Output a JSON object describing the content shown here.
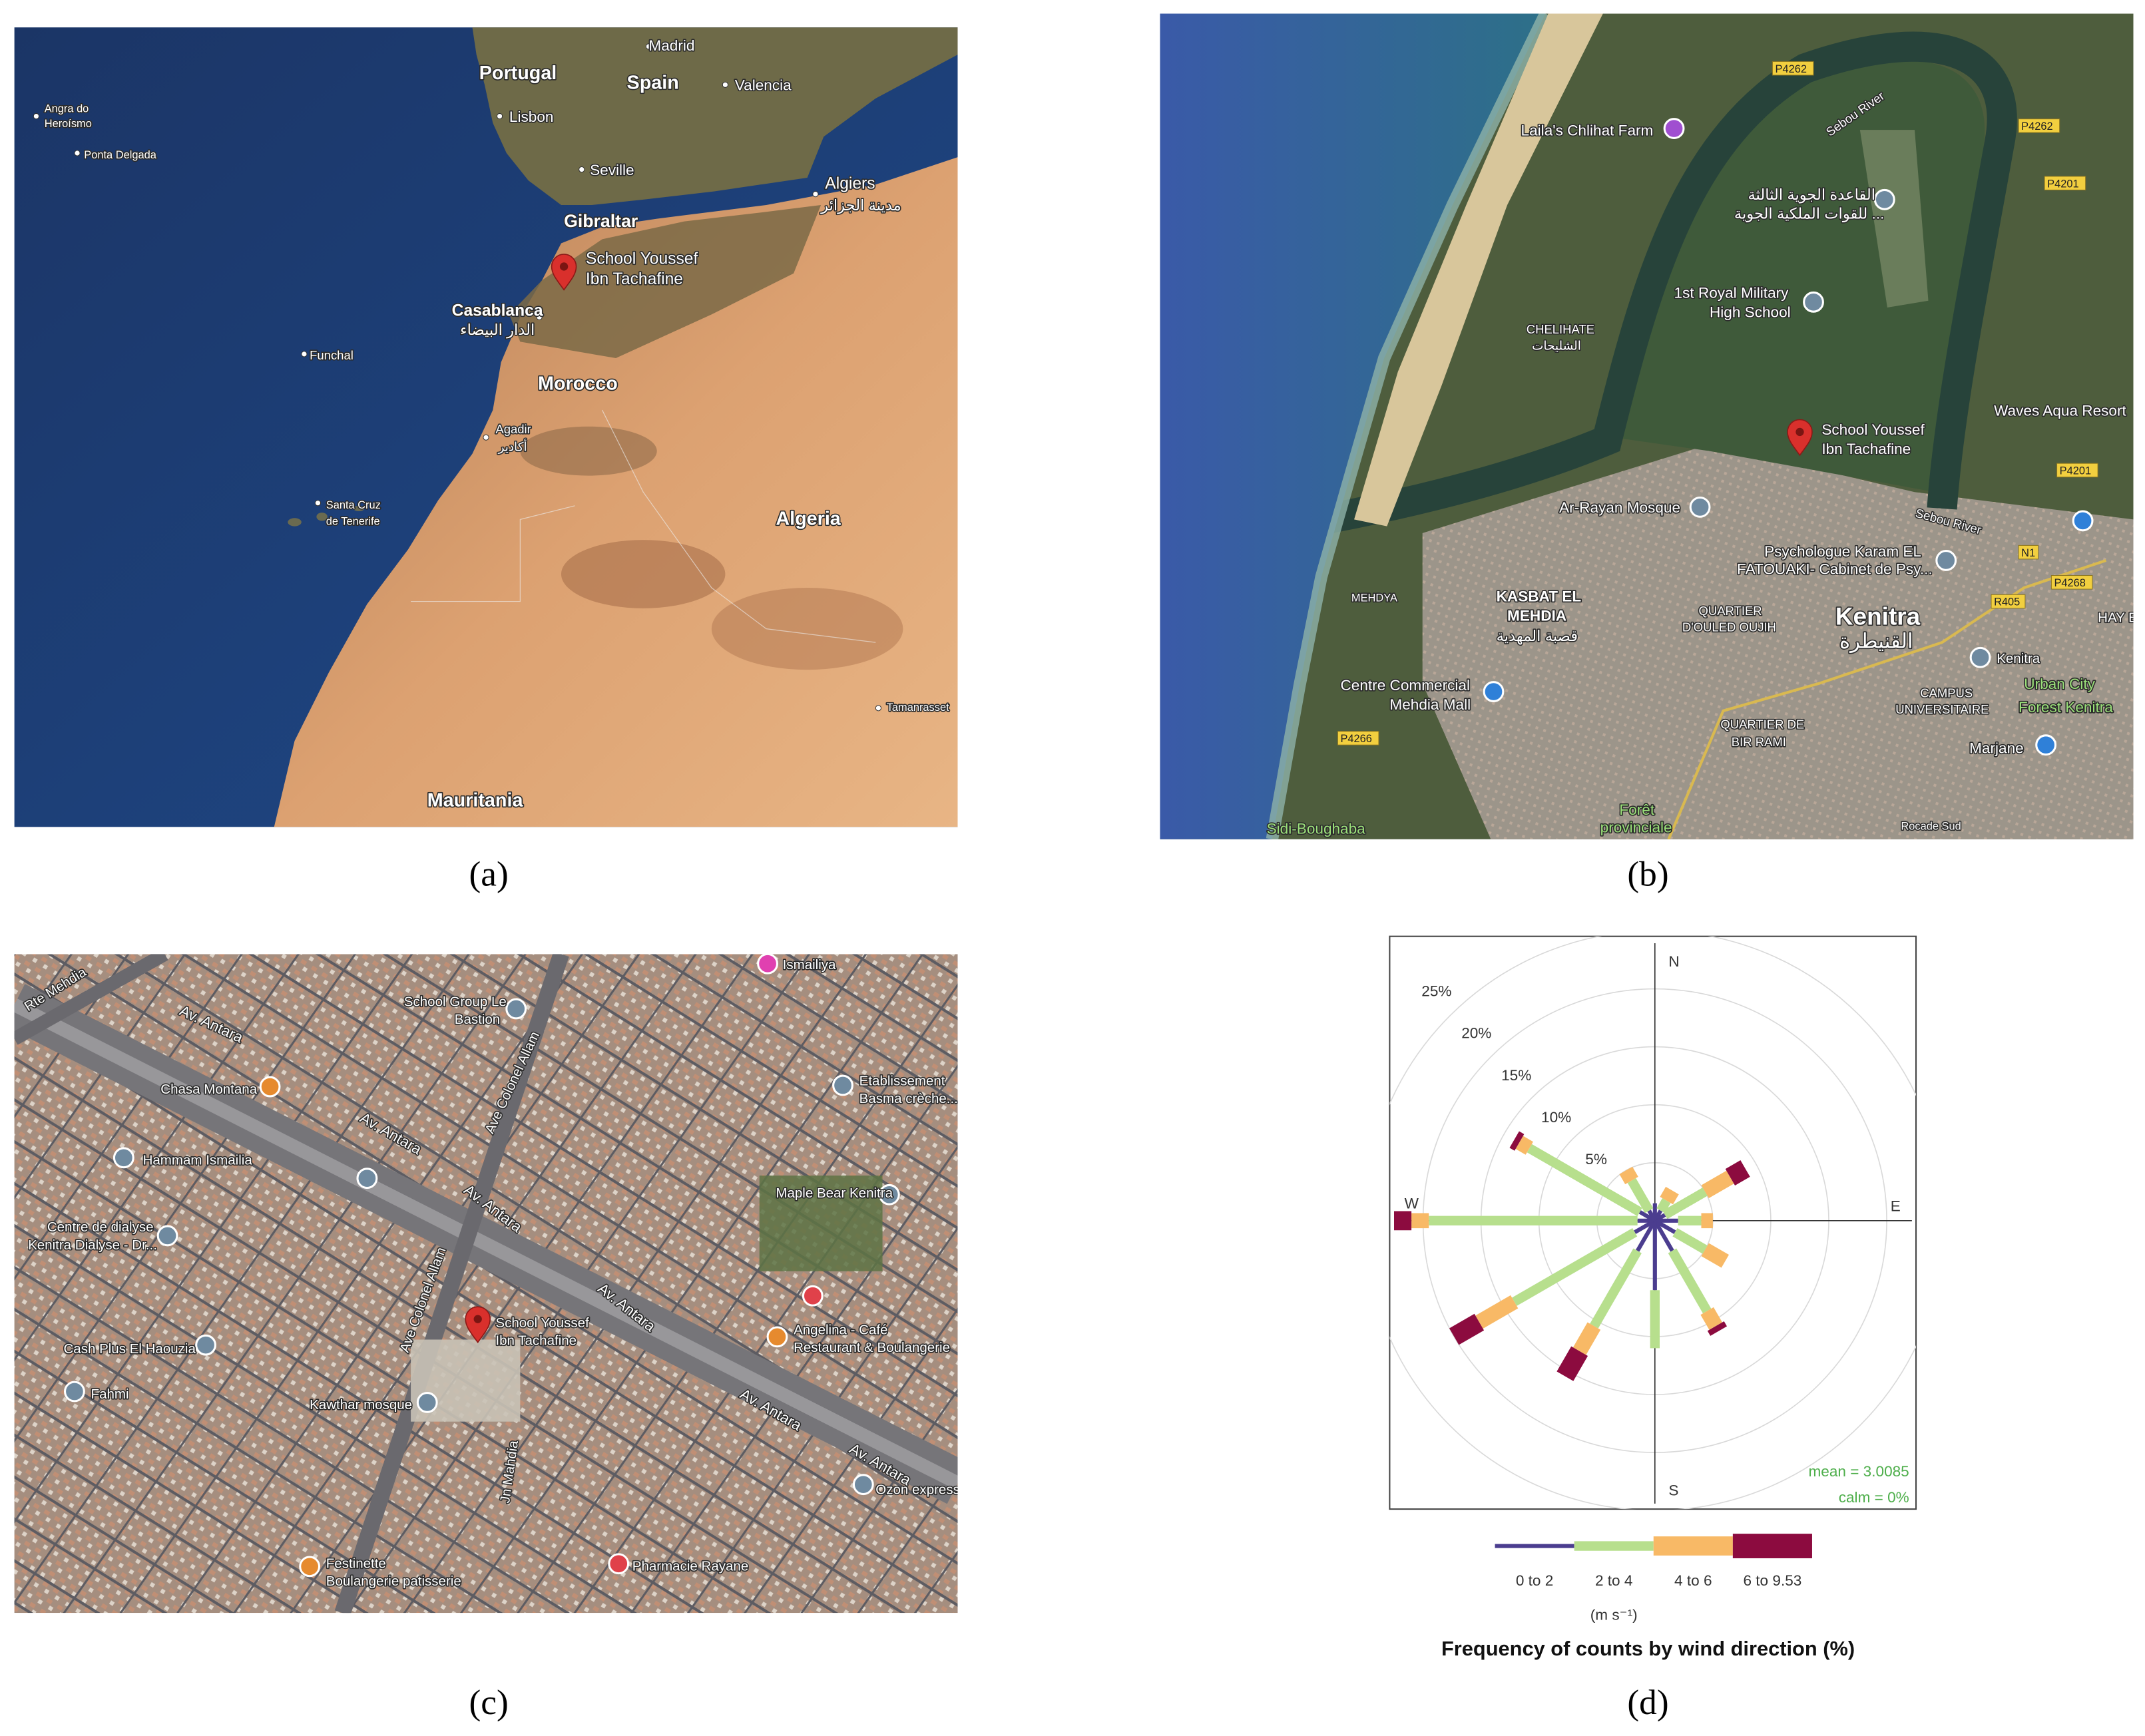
{
  "panels": [
    {
      "label": "(a)",
      "map_labels": [
        "Madrid",
        "Portugal",
        "Spain",
        "Valencia",
        "Lisbon",
        "Angra do",
        "Heroísmo",
        "Ponta Delgada",
        "Seville",
        "Algiers",
        "مدينة الجزائر",
        "Gibraltar",
        "School Youssef",
        "Ibn Tachafine",
        "Casablanca",
        "الدار البيضاء",
        "Funchal",
        "Morocco",
        "Agadir",
        "أكادير",
        "Santa Cruz",
        "de Tenerife",
        "Algeria",
        "Tamanrasset",
        "Mauritania"
      ]
    },
    {
      "label": "(b)",
      "map_labels": [
        "P4262",
        "Laila's Chlihat Farm",
        "القاعدة الجوية الثالثة",
        "للقوات الملكية الجوية ...",
        "1st Royal Military",
        "High School",
        "CHELIHATE",
        "الشليحات",
        "School Youssef",
        "Ibn Tachafine",
        "Waves Aqua Resort",
        "Sebou River",
        "Ar-Rayan Mosque",
        "Psychologue Karam EL",
        "FATOUAKI- Cabinet de Psy...",
        "KASBAT EL",
        "MEHDIA",
        "قصبة المهدية",
        "MEHDYA",
        "QUARTIER",
        "D'OULED OUJIH",
        "Kenitra",
        "القنيطرة",
        "Centre Commercial",
        "Mehdia Mall",
        "Kenitra",
        "CAMPUS",
        "UNIVERSITAIRE",
        "Urban City",
        "Forest Kenitra",
        "QUARTIER DE",
        "BIR RAMI",
        "Marjane",
        "Forêt",
        "provinciale",
        "Sidi-Boughaba",
        "P4266",
        "N1",
        "R405",
        "P4268",
        "P4201",
        "P4262",
        "HAY E",
        "Rocade Sud",
        "Sebou River",
        "P4201"
      ]
    },
    {
      "label": "(c)",
      "map_labels": [
        "Rte Mehdia",
        "Av. Antara",
        "Ismailiya",
        "School Group Le",
        "Bastion",
        "Chasa Montana",
        "Etablissement",
        "Basma crèche...",
        "Hammam Ismailia",
        "Av. Antara",
        "Ave Colonel Allam",
        "Av. Antara",
        "Maple Bear Kenitra",
        "Centre de dialyse",
        "Kenitra Dialyse - Dr...",
        "Ave Colonel Allam",
        "School Youssef",
        "Ibn Tachafine",
        "Av. Antara",
        "Angelina - Café",
        "Restaurant & Boulangerie",
        "Cash Plus El Haouzia",
        "Fahmi",
        "Av. Antara",
        "Kawthar mosque",
        "Jn Mahdia",
        "Av. Antara",
        "Ozon express",
        "Festinette",
        "Boulangerie patisserie",
        "Pharmacie Rayane"
      ]
    },
    {
      "label": "(d)"
    }
  ],
  "chart_data": {
    "type": "windrose",
    "title": "Frequency of counts by wind direction (%)",
    "unit_label": "(m s⁻¹)",
    "compass": [
      "N",
      "E",
      "S",
      "W"
    ],
    "directions": [
      0,
      30,
      60,
      90,
      120,
      150,
      180,
      210,
      240,
      270,
      300,
      330
    ],
    "series": [
      {
        "name": "0 to 2",
        "color": "#4b3d8f",
        "values": [
          1.5,
          1,
          1,
          2,
          2,
          3,
          6,
          3,
          2,
          1.5,
          1.5,
          1
        ]
      },
      {
        "name": "2 to 4",
        "color": "#b7df8d",
        "values": [
          0,
          1,
          4,
          2,
          3,
          6,
          5,
          7.5,
          12,
          18,
          11,
          3
        ]
      },
      {
        "name": "4 to 6",
        "color": "#f8b966",
        "values": [
          0,
          1,
          2.5,
          1,
          2,
          1.5,
          0,
          2.5,
          3.5,
          1.5,
          1,
          1
        ]
      },
      {
        "name": "6 to 9.53",
        "color": "#8c0b3f",
        "values": [
          0,
          0,
          1.5,
          0,
          0,
          0.5,
          0,
          2.5,
          2.5,
          1.5,
          0.5,
          0
        ]
      }
    ],
    "rlim": [
      0,
      25
    ],
    "rticks": [
      {
        "value": 5,
        "label": "5%"
      },
      {
        "value": 10,
        "label": "10%"
      },
      {
        "value": 15,
        "label": "15%"
      },
      {
        "value": 20,
        "label": "20%"
      },
      {
        "value": 25,
        "label": "25%"
      }
    ],
    "grid": true,
    "annotations": [
      "mean = 3.0085",
      "calm = 0%"
    ]
  }
}
